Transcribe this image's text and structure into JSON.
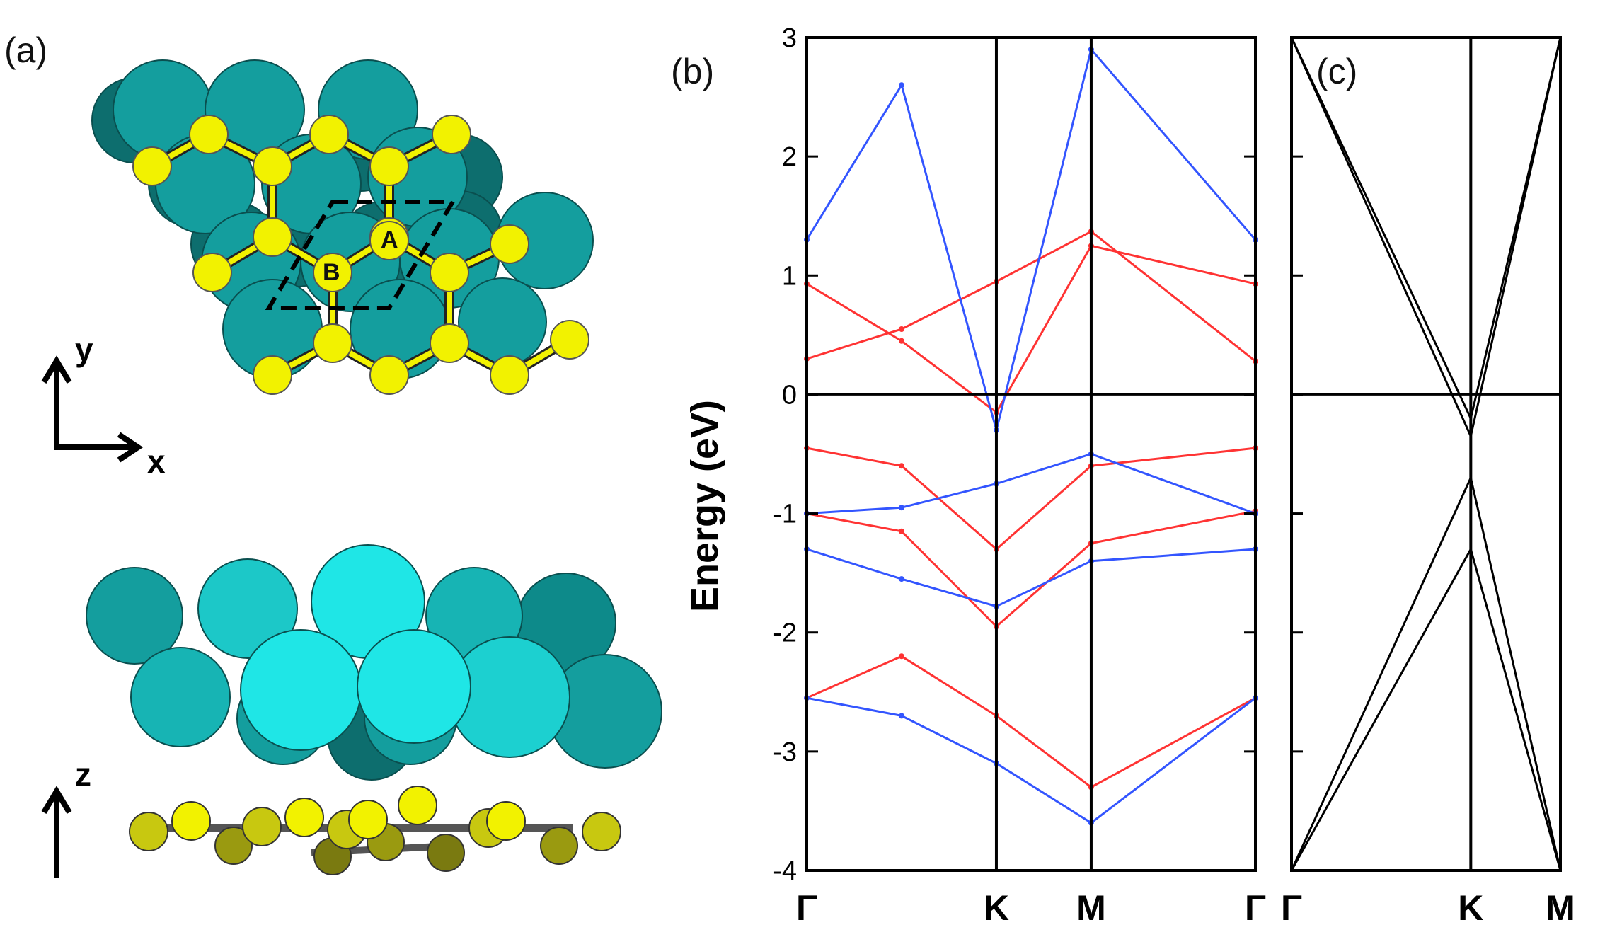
{
  "panels": {
    "a_label": "(a)",
    "b_label": "(b)",
    "c_label": "(c)"
  },
  "structure": {
    "site_labels": [
      "A",
      "B"
    ],
    "top_view_axes": [
      "y",
      "x"
    ],
    "side_view_axis": "z",
    "colors": {
      "substrate_dark": "#0d6e6e",
      "substrate": "#149e9e",
      "substrate_light": "#1fdede",
      "adsorbate": "#f2f200",
      "adsorbate_shadow": "#9a9a10"
    }
  },
  "chart_data": [
    {
      "type": "line",
      "panel": "(b)",
      "ylabel": "Energy (eV)",
      "ylim": [
        -4,
        3
      ],
      "yticks": [
        "3",
        "2",
        "1",
        "0",
        "-1",
        "-2",
        "-3",
        "-4"
      ],
      "x_kpoints": [
        "Γ",
        "K",
        "M",
        "Γ"
      ],
      "x_kpoint_positions": [
        0,
        1,
        1.5,
        2.366
      ],
      "fermi_level": 0,
      "series_colors": {
        "spin_up": "#ff3333",
        "spin_down": "#3355ff"
      },
      "series": [
        {
          "color": "red",
          "x": [
            0,
            0.5,
            1,
            1.5,
            2.366
          ],
          "y": [
            0.93,
            0.45,
            -0.15,
            1.25,
            0.93
          ]
        },
        {
          "color": "red",
          "x": [
            0,
            0.5,
            1,
            1.5,
            2.366
          ],
          "y": [
            0.3,
            0.55,
            0.95,
            1.37,
            0.28
          ]
        },
        {
          "color": "red",
          "x": [
            0,
            0.5,
            1,
            1.5,
            2.366
          ],
          "y": [
            -0.45,
            -0.6,
            -1.3,
            -0.6,
            -0.45
          ]
        },
        {
          "color": "red",
          "x": [
            0,
            0.5,
            1,
            1.5,
            2.366
          ],
          "y": [
            -1.0,
            -1.15,
            -1.95,
            -1.25,
            -0.98
          ]
        },
        {
          "color": "red",
          "x": [
            0,
            0.5,
            1,
            1.5,
            2.366
          ],
          "y": [
            -2.55,
            -2.2,
            -2.7,
            -3.3,
            -2.55
          ]
        },
        {
          "color": "blue",
          "x": [
            0,
            0.5,
            1,
            1.5,
            2.366
          ],
          "y": [
            -1.0,
            -0.95,
            -0.75,
            -0.5,
            -1.0
          ]
        },
        {
          "color": "blue",
          "x": [
            0,
            0.5,
            1,
            1.5,
            2.366
          ],
          "y": [
            -1.3,
            -1.55,
            -1.78,
            -1.4,
            -1.3
          ]
        },
        {
          "color": "blue",
          "x": [
            0,
            0.5,
            1,
            1.5,
            2.366
          ],
          "y": [
            -2.55,
            -2.7,
            -3.1,
            -3.6,
            -2.55
          ]
        },
        {
          "color": "blue",
          "x": [
            0,
            0.5,
            1,
            1.5,
            2.366
          ],
          "y": [
            1.3,
            2.6,
            -0.3,
            2.9,
            1.3
          ]
        }
      ]
    },
    {
      "type": "line",
      "panel": "(c)",
      "ylim": [
        -4,
        3
      ],
      "x_kpoints": [
        "Γ",
        "K",
        "M"
      ],
      "x_kpoint_positions": [
        0,
        1,
        1.5
      ],
      "fermi_level": 0,
      "series_colors": {
        "bands": "#000000"
      },
      "series": [
        {
          "x": [
            0.0,
            1.0,
            1.5
          ],
          "y": [
            3.0,
            -0.2,
            3.0
          ]
        },
        {
          "x": [
            0.0,
            1.0,
            1.5
          ],
          "y": [
            3.0,
            -0.35,
            3.0
          ]
        },
        {
          "x": [
            0.0,
            1.0,
            1.5
          ],
          "y": [
            -4.0,
            -0.7,
            -4.0
          ]
        },
        {
          "x": [
            0.0,
            1.0,
            1.5
          ],
          "y": [
            -4.0,
            -1.3,
            -4.0
          ]
        }
      ]
    }
  ]
}
